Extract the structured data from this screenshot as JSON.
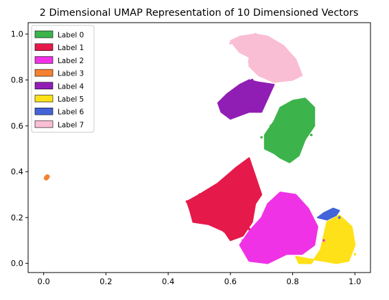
{
  "chart_data": {
    "type": "scatter",
    "title": "2 Dimensional UMAP Representation of 10 Dimensioned Vectors",
    "xlabel": "",
    "ylabel": "",
    "xlim": [
      -0.05,
      1.05
    ],
    "ylim": [
      -0.04,
      1.05
    ],
    "xticks": [
      "0.0",
      "0.2",
      "0.4",
      "0.6",
      "0.8",
      "1.0"
    ],
    "yticks": [
      "0.0",
      "0.2",
      "0.4",
      "0.6",
      "0.8",
      "1.0"
    ],
    "grid": false,
    "legend_position": "top-left",
    "series": [
      {
        "name": "Label 0",
        "color": "#3cb44b",
        "points": [
          [
            0.7,
            0.55
          ],
          [
            0.73,
            0.6
          ],
          [
            0.76,
            0.64
          ],
          [
            0.8,
            0.66
          ],
          [
            0.84,
            0.64
          ],
          [
            0.78,
            0.5
          ],
          [
            0.82,
            0.5
          ],
          [
            0.86,
            0.56
          ],
          [
            0.75,
            0.5
          ],
          [
            0.8,
            0.6
          ]
        ]
      },
      {
        "name": "Label 1",
        "color": "#e6194b",
        "points": [
          [
            0.46,
            0.27
          ],
          [
            0.5,
            0.3
          ],
          [
            0.54,
            0.24
          ],
          [
            0.6,
            0.3
          ],
          [
            0.64,
            0.25
          ],
          [
            0.68,
            0.3
          ],
          [
            0.58,
            0.14
          ],
          [
            0.66,
            0.15
          ],
          [
            0.52,
            0.2
          ],
          [
            0.63,
            0.35
          ]
        ]
      },
      {
        "name": "Label 2",
        "color": "#f032e6",
        "points": [
          [
            0.64,
            0.1
          ],
          [
            0.68,
            0.05
          ],
          [
            0.72,
            0.1
          ],
          [
            0.76,
            0.2
          ],
          [
            0.8,
            0.26
          ],
          [
            0.84,
            0.22
          ],
          [
            0.86,
            0.12
          ],
          [
            0.9,
            0.1
          ],
          [
            0.74,
            0.02
          ],
          [
            0.8,
            0.05
          ]
        ]
      },
      {
        "name": "Label 3",
        "color": "#f58231",
        "points": [
          [
            0.01,
            0.375
          ],
          [
            0.008,
            0.372
          ],
          [
            0.012,
            0.378
          ]
        ]
      },
      {
        "name": "Label 4",
        "color": "#911eb4",
        "points": [
          [
            0.57,
            0.7
          ],
          [
            0.6,
            0.74
          ],
          [
            0.64,
            0.78
          ],
          [
            0.67,
            0.8
          ],
          [
            0.7,
            0.77
          ],
          [
            0.72,
            0.73
          ],
          [
            0.68,
            0.7
          ],
          [
            0.62,
            0.66
          ],
          [
            0.59,
            0.65
          ]
        ]
      },
      {
        "name": "Label 5",
        "color": "#ffe119",
        "points": [
          [
            0.9,
            0.05
          ],
          [
            0.93,
            0.08
          ],
          [
            0.96,
            0.12
          ],
          [
            0.99,
            0.08
          ],
          [
            1.0,
            0.04
          ],
          [
            0.97,
            0.01
          ],
          [
            0.93,
            0.02
          ],
          [
            0.82,
            0.02
          ]
        ]
      },
      {
        "name": "Label 6",
        "color": "#4363d8",
        "points": [
          [
            0.9,
            0.2
          ],
          [
            0.92,
            0.22
          ],
          [
            0.94,
            0.23
          ],
          [
            0.95,
            0.2
          ]
        ]
      },
      {
        "name": "Label 7",
        "color": "#fabed4",
        "points": [
          [
            0.6,
            0.96
          ],
          [
            0.64,
            0.98
          ],
          [
            0.68,
            1.0
          ],
          [
            0.72,
            0.98
          ],
          [
            0.76,
            0.95
          ],
          [
            0.8,
            0.9
          ],
          [
            0.82,
            0.84
          ],
          [
            0.78,
            0.83
          ],
          [
            0.72,
            0.82
          ],
          [
            0.66,
            0.88
          ]
        ]
      }
    ]
  }
}
